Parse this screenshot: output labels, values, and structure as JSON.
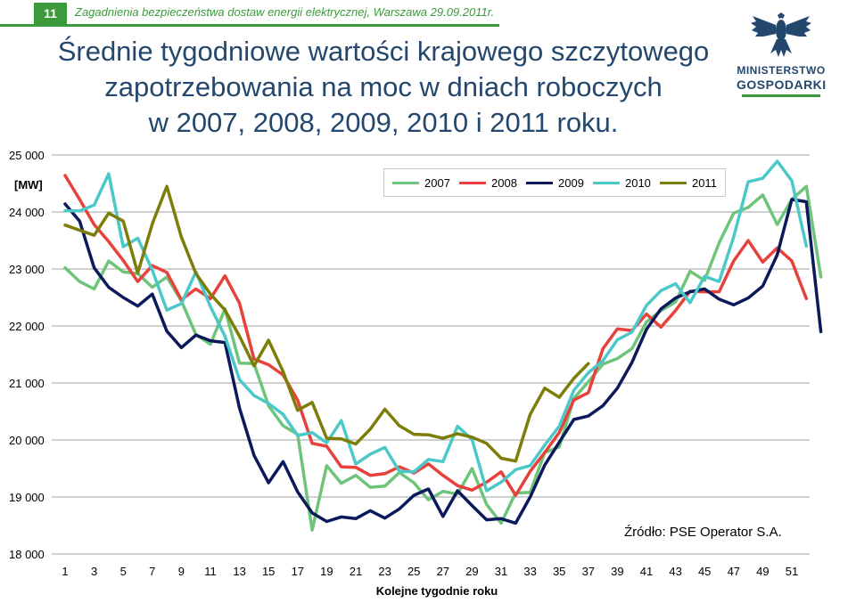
{
  "header": {
    "slide_number": "11",
    "text": "Zagadnienia bezpieczeństwa dostaw energii elektrycznej, Warszawa 29.09.2011r."
  },
  "title": "Średnie tygodniowe wartości krajowego szczytowego\nzapotrzebowania na moc w dniach roboczych\nw 2007, 2008, 2009, 2010 i 2011 roku.",
  "logo": {
    "line1": "MINISTERSTWO",
    "line2": "GOSPODARKI",
    "icon": "polish-eagle-emblem"
  },
  "colors": {
    "accent_green": "#3a9a3c",
    "title_blue": "#24476e"
  },
  "source": "Źródło: PSE Operator S.A.",
  "chart_data": {
    "type": "line",
    "ylabel": "[MW]",
    "xlabel": "Kolejne tygodnie roku",
    "ylim": [
      18000,
      25000
    ],
    "yticks": [
      18000,
      19000,
      20000,
      21000,
      22000,
      23000,
      24000,
      25000
    ],
    "ytick_labels": [
      "18 000",
      "19 000",
      "20 000",
      "21 000",
      "22 000",
      "23 000",
      "24 000",
      "25 000"
    ],
    "xlim": [
      1,
      53
    ],
    "xtick_labels": [
      "1",
      "3",
      "5",
      "7",
      "9",
      "11",
      "13",
      "15",
      "17",
      "19",
      "21",
      "23",
      "25",
      "27",
      "29",
      "31",
      "33",
      "35",
      "37",
      "39",
      "41",
      "43",
      "45",
      "47",
      "49",
      "51"
    ],
    "grid": "horizontal",
    "legend_position": "top-right",
    "series": [
      {
        "name": "2007",
        "color": "#6ec57a",
        "values": [
          23020,
          22780,
          22650,
          23140,
          22950,
          22920,
          22680,
          22860,
          22440,
          21850,
          21680,
          22300,
          21350,
          21340,
          20600,
          20250,
          20100,
          18420,
          19550,
          19240,
          19380,
          19170,
          19190,
          19430,
          19250,
          18950,
          19100,
          19050,
          19500,
          18870,
          18540,
          19070,
          19080,
          19780,
          19880,
          20730,
          21020,
          21330,
          21430,
          21600,
          22070,
          22270,
          22420,
          22960,
          22800,
          23460,
          23980,
          24080,
          24300,
          23780,
          24220,
          24450,
          22860
        ]
      },
      {
        "name": "2008",
        "color": "#e8413c",
        "values": [
          24640,
          24220,
          23780,
          23480,
          23150,
          22780,
          23060,
          22940,
          22460,
          22650,
          22480,
          22880,
          22400,
          21420,
          21320,
          21140,
          20700,
          19940,
          19890,
          19530,
          19520,
          19380,
          19410,
          19530,
          19420,
          19580,
          19380,
          19200,
          19120,
          19260,
          19440,
          19030,
          19450,
          19780,
          20130,
          20700,
          20830,
          21600,
          21950,
          21920,
          22210,
          21980,
          22270,
          22610,
          22600,
          22600,
          23140,
          23500,
          23120,
          23370,
          23140,
          22480
        ]
      },
      {
        "name": "2009",
        "color": "#0c1a5c",
        "values": [
          24140,
          23840,
          23020,
          22680,
          22500,
          22350,
          22560,
          21910,
          21620,
          21840,
          21740,
          21710,
          20560,
          19730,
          19250,
          19620,
          19090,
          18720,
          18570,
          18650,
          18620,
          18760,
          18630,
          18790,
          19030,
          19140,
          18660,
          19110,
          18850,
          18600,
          18620,
          18540,
          19000,
          19560,
          19960,
          20360,
          20420,
          20600,
          20910,
          21360,
          21940,
          22300,
          22490,
          22600,
          22650,
          22470,
          22370,
          22490,
          22700,
          23250,
          24220,
          24180,
          21900
        ]
      },
      {
        "name": "2010",
        "color": "#4dc8c8",
        "values": [
          24020,
          24020,
          24120,
          24670,
          23390,
          23540,
          22980,
          22280,
          22390,
          22950,
          22340,
          21820,
          21060,
          20780,
          20640,
          20450,
          20080,
          20130,
          19950,
          20340,
          19580,
          19750,
          19870,
          19450,
          19440,
          19660,
          19620,
          20240,
          20010,
          19110,
          19260,
          19480,
          19550,
          19910,
          20240,
          20870,
          21180,
          21390,
          21760,
          21890,
          22360,
          22620,
          22740,
          22410,
          22870,
          22780,
          23560,
          24530,
          24590,
          24890,
          24550,
          23400
        ]
      },
      {
        "name": "2011",
        "color": "#7d7d0a",
        "values": [
          23770,
          23680,
          23590,
          23980,
          23840,
          22930,
          23790,
          24450,
          23560,
          22920,
          22560,
          22280,
          21820,
          21300,
          21750,
          21200,
          20520,
          20660,
          20030,
          20020,
          19930,
          20190,
          20540,
          20250,
          20100,
          20090,
          20030,
          20110,
          20050,
          19940,
          19680,
          19630,
          20450,
          20910,
          20750,
          21080,
          21340
        ]
      }
    ]
  }
}
